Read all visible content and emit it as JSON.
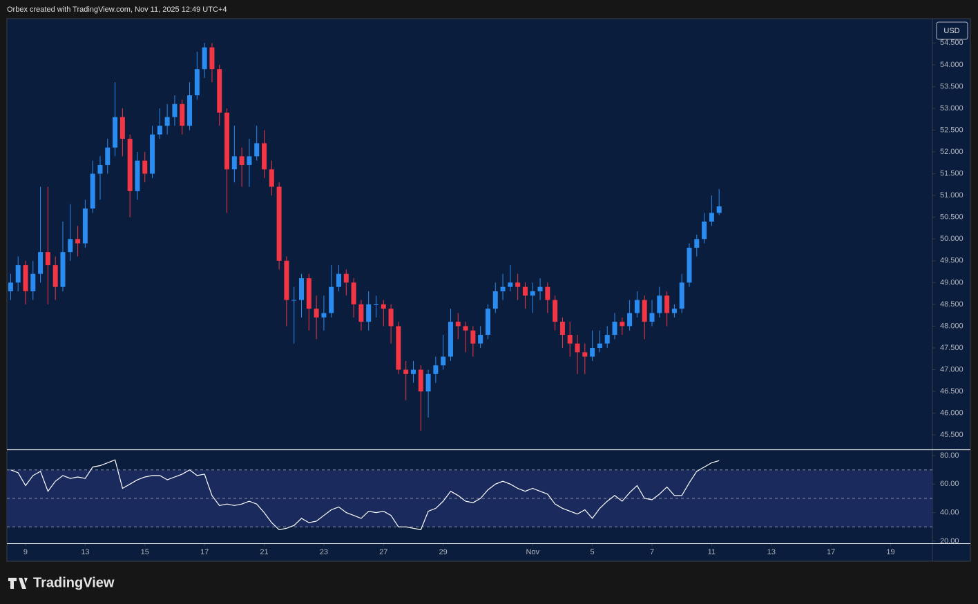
{
  "header": {
    "text": "Orbex created with TradingView.com, Nov 11, 2025 12:49 UTC+4"
  },
  "footer": {
    "logo": "TradingView"
  },
  "chart_data": [
    {
      "type": "candlestick",
      "currency": "USD",
      "up_color": "#2a8cf0",
      "down_color": "#f23645",
      "x": [
        -0.5,
        -0.25,
        0,
        0.25,
        0.5,
        0.75,
        1,
        1.25,
        1.5,
        1.75,
        2,
        2.25,
        2.5,
        2.75,
        3,
        3.25,
        3.5,
        3.75,
        4,
        4.25,
        4.5,
        4.75,
        5,
        5.25,
        5.5,
        5.75,
        6,
        6.25,
        6.5,
        6.75,
        7,
        7.25,
        7.5,
        7.75,
        8,
        8.25,
        8.5,
        8.75,
        9,
        9.25,
        9.5,
        9.75,
        10,
        10.25,
        10.5,
        10.75,
        11,
        11.25,
        11.5,
        11.75,
        12,
        12.25,
        12.5,
        12.75,
        13,
        13.25,
        13.5,
        13.75,
        14,
        14.25,
        14.5,
        14.75,
        15,
        15.25,
        15.5,
        15.75,
        16,
        16.25,
        16.5,
        16.75,
        17,
        17.25,
        17.5,
        17.75,
        18,
        18.25,
        18.5,
        18.75,
        19,
        19.25,
        19.5,
        19.75,
        20,
        20.25,
        20.5,
        20.75,
        21,
        21.25,
        21.5,
        21.75,
        22,
        22.25,
        22.5,
        22.75,
        23,
        23.25
      ],
      "open": [
        48.8,
        49.0,
        49.4,
        48.8,
        49.2,
        49.7,
        49.4,
        48.9,
        49.7,
        50.0,
        49.9,
        50.7,
        51.5,
        51.7,
        52.1,
        52.8,
        52.3,
        51.1,
        51.8,
        51.5,
        52.4,
        52.6,
        52.8,
        53.1,
        52.6,
        53.3,
        53.9,
        54.4,
        53.9,
        52.9,
        51.6,
        51.9,
        51.7,
        51.9,
        52.2,
        51.6,
        51.2,
        49.5,
        48.6,
        48.6,
        49.1,
        48.4,
        48.2,
        48.3,
        48.9,
        49.2,
        49.0,
        48.5,
        48.1,
        48.5,
        48.5,
        48.4,
        48.0,
        47.0,
        46.9,
        47.0,
        46.5,
        46.9,
        47.1,
        47.3,
        48.1,
        48.0,
        47.9,
        47.6,
        47.8,
        48.4,
        48.8,
        48.9,
        49.0,
        48.9,
        48.7,
        48.8,
        48.9,
        48.6,
        48.1,
        47.8,
        47.6,
        47.4,
        47.3,
        47.5,
        47.6,
        47.8,
        48.1,
        48.0,
        48.3,
        48.6,
        48.1,
        48.3,
        48.7,
        48.3,
        48.4,
        49.0,
        49.8,
        50.0,
        50.4,
        50.6
      ],
      "high": [
        49.2,
        49.6,
        49.5,
        49.5,
        51.2,
        51.2,
        49.6,
        50.4,
        50.8,
        50.3,
        50.9,
        51.8,
        51.9,
        52.3,
        53.6,
        53.0,
        52.4,
        52.0,
        52.0,
        52.6,
        53.0,
        53.1,
        53.3,
        53.2,
        53.6,
        54.3,
        54.5,
        54.5,
        54.0,
        53.0,
        52.6,
        52.1,
        52.3,
        52.6,
        52.5,
        51.8,
        51.3,
        49.6,
        48.9,
        49.2,
        49.2,
        48.7,
        48.7,
        49.4,
        49.4,
        49.3,
        49.1,
        48.6,
        48.8,
        48.7,
        48.6,
        48.5,
        48.1,
        47.2,
        47.2,
        47.1,
        47.0,
        47.3,
        47.8,
        48.4,
        48.3,
        48.1,
        48.0,
        48.0,
        48.5,
        49.0,
        49.2,
        49.4,
        49.2,
        49.0,
        49.0,
        49.1,
        49.0,
        48.7,
        48.2,
        48.1,
        47.8,
        47.6,
        47.9,
        47.9,
        48.0,
        48.3,
        48.2,
        48.6,
        48.8,
        48.7,
        48.6,
        48.9,
        48.8,
        48.5,
        49.2,
        49.9,
        50.1,
        50.6,
        51.0,
        51.15
      ],
      "low": [
        48.6,
        48.8,
        48.5,
        48.6,
        49.0,
        48.5,
        48.6,
        48.8,
        49.5,
        49.6,
        49.8,
        50.6,
        50.9,
        51.5,
        51.9,
        51.9,
        50.5,
        50.9,
        51.3,
        51.4,
        52.3,
        52.4,
        52.6,
        52.4,
        52.5,
        53.2,
        53.7,
        53.6,
        52.6,
        50.6,
        51.3,
        51.2,
        51.2,
        51.8,
        51.4,
        51.0,
        49.3,
        48.0,
        47.6,
        48.2,
        47.9,
        47.7,
        47.9,
        48.2,
        48.8,
        48.7,
        48.2,
        47.9,
        47.9,
        48.2,
        48.0,
        47.6,
        46.9,
        46.3,
        46.7,
        45.6,
        45.9,
        46.7,
        47.0,
        47.2,
        47.7,
        47.4,
        47.3,
        47.5,
        47.7,
        48.3,
        48.6,
        48.8,
        48.6,
        48.4,
        48.3,
        48.6,
        48.3,
        47.9,
        47.5,
        47.3,
        46.9,
        46.9,
        47.2,
        47.4,
        47.5,
        47.7,
        47.8,
        47.9,
        48.2,
        47.7,
        48.0,
        48.2,
        48.0,
        48.2,
        48.3,
        48.9,
        49.6,
        49.9,
        50.3,
        50.55
      ],
      "close": [
        49.0,
        49.4,
        48.8,
        49.2,
        49.7,
        49.4,
        48.9,
        49.7,
        50.0,
        49.9,
        50.7,
        51.5,
        51.7,
        52.1,
        52.8,
        52.3,
        51.1,
        51.8,
        51.5,
        52.4,
        52.6,
        52.8,
        53.1,
        52.6,
        53.3,
        53.9,
        54.4,
        53.9,
        52.9,
        51.6,
        51.9,
        51.7,
        51.9,
        52.2,
        51.6,
        51.2,
        49.5,
        48.6,
        48.6,
        49.1,
        48.4,
        48.2,
        48.3,
        48.9,
        49.2,
        49.0,
        48.5,
        48.1,
        48.5,
        48.5,
        48.4,
        48.0,
        47.0,
        46.9,
        47.0,
        46.5,
        46.9,
        47.1,
        47.3,
        48.1,
        48.0,
        47.9,
        47.6,
        47.8,
        48.4,
        48.8,
        48.9,
        49.0,
        48.9,
        48.7,
        48.8,
        48.9,
        48.6,
        48.1,
        47.8,
        47.6,
        47.4,
        47.3,
        47.5,
        47.6,
        47.8,
        48.1,
        48.0,
        48.3,
        48.6,
        48.1,
        48.3,
        48.7,
        48.3,
        48.4,
        49.0,
        49.8,
        50.0,
        50.4,
        50.6,
        50.75
      ],
      "xlim": [
        -0.625,
        30.4
      ],
      "ylim": [
        45.17,
        55.06
      ],
      "yticks": [
        {
          "value": 45.5,
          "label": "45.500"
        },
        {
          "value": 46,
          "label": "46.000"
        },
        {
          "value": 46.5,
          "label": "46.500"
        },
        {
          "value": 47,
          "label": "47.000"
        },
        {
          "value": 47.5,
          "label": "47.500"
        },
        {
          "value": 48,
          "label": "48.000"
        },
        {
          "value": 48.5,
          "label": "48.500"
        },
        {
          "value": 49,
          "label": "49.000"
        },
        {
          "value": 49.5,
          "label": "49.500"
        },
        {
          "value": 50,
          "label": "50.000"
        },
        {
          "value": 50.5,
          "label": "50.500"
        },
        {
          "value": 51,
          "label": "51.000"
        },
        {
          "value": 51.5,
          "label": "51.500"
        },
        {
          "value": 52,
          "label": "52.000"
        },
        {
          "value": 52.5,
          "label": "52.500"
        },
        {
          "value": 53,
          "label": "53.000"
        },
        {
          "value": 53.5,
          "label": "53.500"
        },
        {
          "value": 54,
          "label": "54.000"
        },
        {
          "value": 54.5,
          "label": "54.500"
        }
      ]
    },
    {
      "type": "line",
      "color": "#ffffff",
      "band": [
        30,
        70
      ],
      "hlines": [
        30,
        50,
        70
      ],
      "x": [
        -0.5,
        -0.25,
        0,
        0.25,
        0.5,
        0.75,
        1,
        1.25,
        1.5,
        1.75,
        2,
        2.25,
        2.5,
        2.75,
        3,
        3.25,
        3.5,
        3.75,
        4,
        4.25,
        4.5,
        4.75,
        5,
        5.25,
        5.5,
        5.75,
        6,
        6.25,
        6.5,
        6.75,
        7,
        7.25,
        7.5,
        7.75,
        8,
        8.25,
        8.5,
        8.75,
        9,
        9.25,
        9.5,
        9.75,
        10,
        10.25,
        10.5,
        10.75,
        11,
        11.25,
        11.5,
        11.75,
        12,
        12.25,
        12.5,
        12.75,
        13,
        13.25,
        13.5,
        13.75,
        14,
        14.25,
        14.5,
        14.75,
        15,
        15.25,
        15.5,
        15.75,
        16,
        16.25,
        16.5,
        16.75,
        17,
        17.25,
        17.5,
        17.75,
        18,
        18.25,
        18.5,
        18.75,
        19,
        19.25,
        19.5,
        19.75,
        20,
        20.25,
        20.5,
        20.75,
        21,
        21.25,
        21.5,
        21.75,
        22,
        22.25,
        22.5,
        22.75,
        23,
        23.25
      ],
      "values": [
        70,
        68,
        59,
        66,
        69,
        55,
        62,
        66,
        64,
        65,
        64,
        72,
        73,
        75,
        77,
        57,
        60,
        63,
        65,
        66,
        66,
        63,
        65,
        67,
        70,
        66,
        67,
        52,
        45,
        46,
        45,
        46,
        48,
        46,
        40,
        33,
        28,
        29,
        31,
        36,
        33,
        34,
        38,
        42,
        44,
        40,
        38,
        36,
        41,
        40,
        41,
        38,
        30,
        30,
        29,
        28,
        41,
        43,
        48,
        55,
        52,
        48,
        47,
        50,
        56,
        60,
        62,
        60,
        57,
        55,
        57,
        55,
        53,
        46,
        43,
        41,
        39,
        42,
        36,
        43,
        48,
        52,
        48,
        54,
        59,
        50,
        49,
        53,
        58,
        52,
        52,
        61,
        69,
        72,
        75,
        76.5
      ],
      "xlim": [
        -0.625,
        30.4
      ],
      "ylim": [
        18.5,
        83.9
      ],
      "yticks": [
        {
          "value": 20,
          "label": "20.00"
        },
        {
          "value": 40,
          "label": "40.00"
        },
        {
          "value": 60,
          "label": "60.00"
        },
        {
          "value": 80,
          "label": "80.00"
        }
      ],
      "xticks": [
        {
          "value": 0,
          "label": "9"
        },
        {
          "value": 2,
          "label": "13"
        },
        {
          "value": 4,
          "label": "15"
        },
        {
          "value": 6,
          "label": "17"
        },
        {
          "value": 8,
          "label": "21"
        },
        {
          "value": 10,
          "label": "23"
        },
        {
          "value": 12,
          "label": "27"
        },
        {
          "value": 14,
          "label": "29"
        },
        {
          "value": 17,
          "label": "Nov"
        },
        {
          "value": 19,
          "label": "5"
        },
        {
          "value": 21,
          "label": "7"
        },
        {
          "value": 23,
          "label": "11"
        },
        {
          "value": 25,
          "label": "13"
        },
        {
          "value": 27,
          "label": "17"
        },
        {
          "value": 29,
          "label": "19"
        }
      ]
    }
  ]
}
